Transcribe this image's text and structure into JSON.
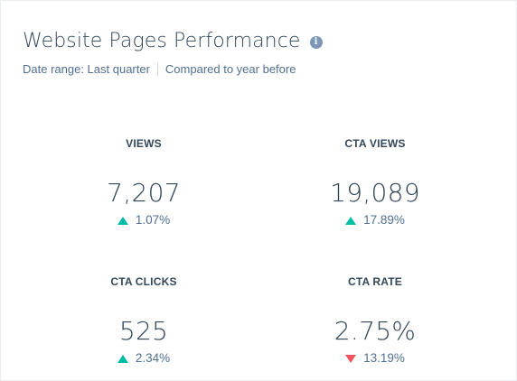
{
  "header": {
    "title": "Website Pages Performance",
    "info_icon": "info-icon"
  },
  "meta": {
    "date_range": "Date range: Last quarter",
    "comparison": "Compared to year before"
  },
  "metrics": [
    {
      "label": "VIEWS",
      "value": "7,207",
      "change": "1.07%",
      "direction": "up"
    },
    {
      "label": "CTA VIEWS",
      "value": "19,089",
      "change": "17.89%",
      "direction": "up"
    },
    {
      "label": "CTA CLICKS",
      "value": "525",
      "change": "2.34%",
      "direction": "up"
    },
    {
      "label": "CTA RATE",
      "value": "2.75%",
      "change": "13.19%",
      "direction": "down"
    }
  ],
  "colors": {
    "text": "#33475b",
    "muted": "#516f90",
    "up": "#00bda5",
    "down": "#f2545b",
    "info_icon": "#7c98b6"
  }
}
